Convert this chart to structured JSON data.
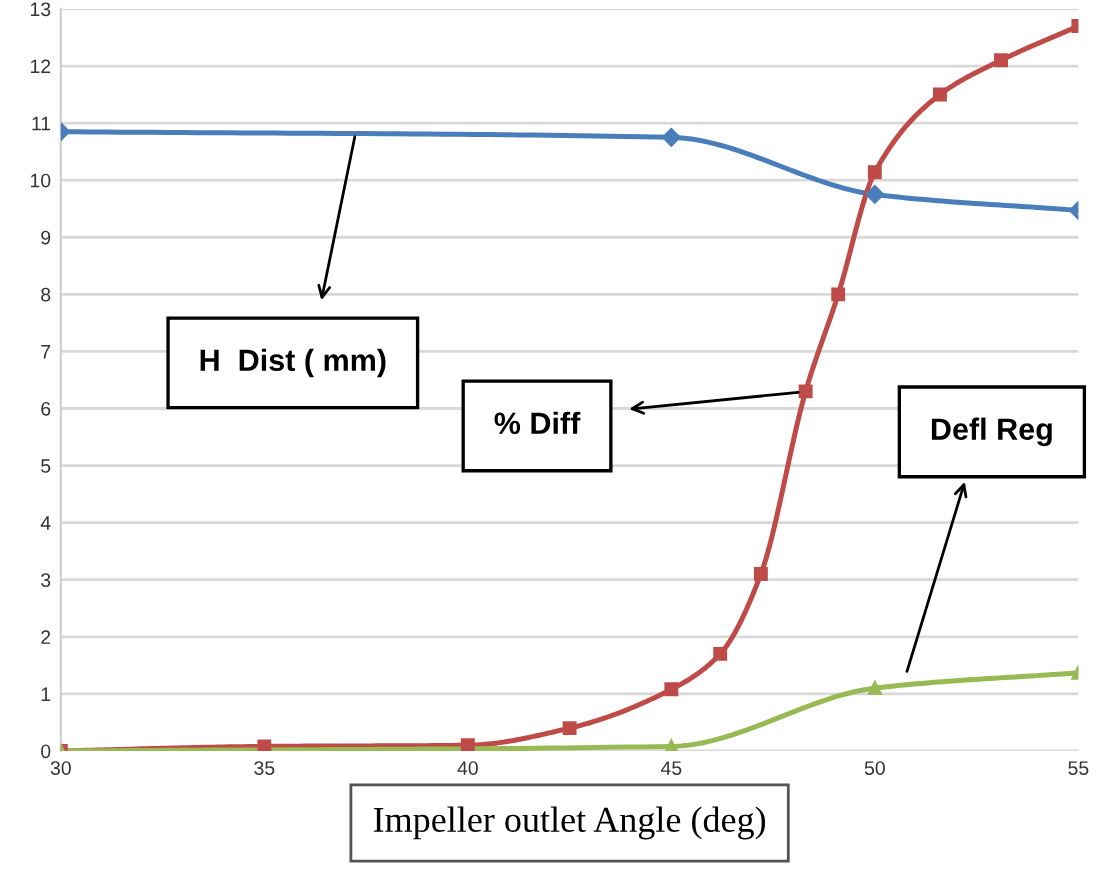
{
  "chart_data": {
    "type": "line",
    "xlabel": "Impeller outlet Angle (deg)",
    "x": [
      30,
      45,
      50,
      55
    ],
    "series": [
      {
        "color": "#4a7ebb",
        "marker": "diamond",
        "values": [
          10.85,
          10.75,
          9.75,
          9.47
        ]
      },
      {
        "color": "#be4b48",
        "marker": "square",
        "x": [
          30,
          35,
          40,
          42.5,
          45,
          46.2,
          47.2,
          48.3,
          49.1,
          50,
          51.6,
          53.1,
          55
        ],
        "values": [
          0,
          0.08,
          0.1,
          0.4,
          1.08,
          1.7,
          3.1,
          6.3,
          8.0,
          10.14,
          11.5,
          12.1,
          12.7
        ]
      },
      {
        "color": "#98b954",
        "marker": "triangle",
        "values": [
          0,
          0.08,
          1.1,
          1.37
        ]
      }
    ],
    "annotations": [
      "H  Dist ( mm)",
      "% Diff",
      "Defl Reg"
    ],
    "xlim": [
      30,
      55
    ],
    "xticks": [
      30,
      35,
      40,
      45,
      50,
      55
    ],
    "ylim": [
      0,
      13
    ],
    "yticks": [
      0,
      1,
      2,
      3,
      4,
      5,
      6,
      7,
      8,
      9,
      10,
      11,
      12,
      13
    ],
    "grid": "y",
    "line_style": "solid"
  }
}
